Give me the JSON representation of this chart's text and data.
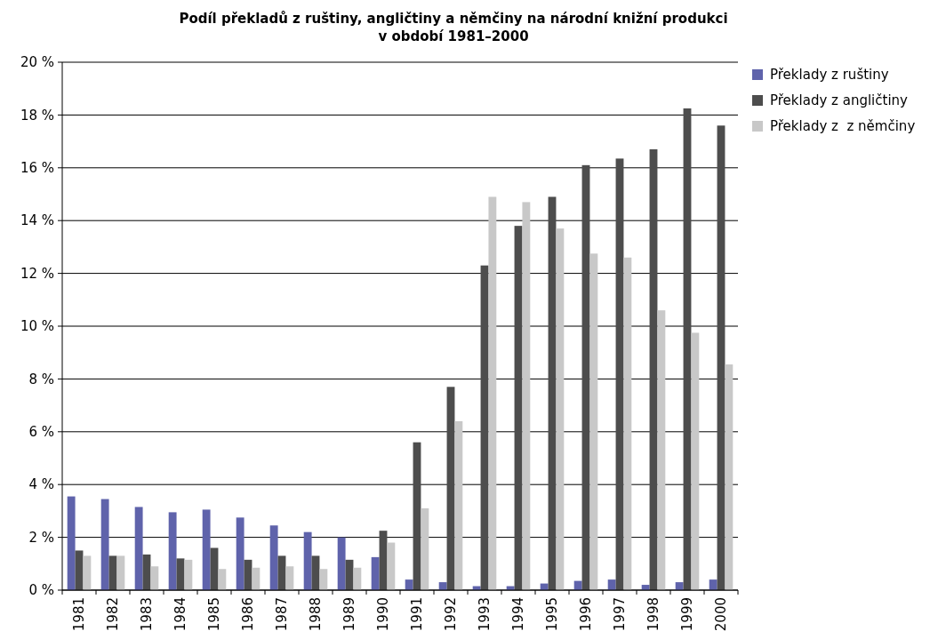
{
  "chart_data": {
    "type": "bar",
    "title": "Podíl překladů z ruštiny, angličtiny a němčiny na národní knižní produkci\nv období 1981–2000",
    "categories": [
      "1981",
      "1982",
      "1983",
      "1984",
      "1985",
      "1986",
      "1987",
      "1988",
      "1989",
      "1990",
      "1991",
      "1992",
      "1993",
      "1994",
      "1995",
      "1996",
      "1997",
      "1998",
      "1999",
      "2000"
    ],
    "series": [
      {
        "name": "Překlady z ruštiny",
        "color": "#5f63ab",
        "values": [
          3.55,
          3.45,
          3.15,
          2.95,
          3.05,
          2.75,
          2.45,
          2.2,
          2.0,
          1.25,
          0.4,
          0.3,
          0.15,
          0.15,
          0.25,
          0.35,
          0.4,
          0.2,
          0.3,
          0.4
        ]
      },
      {
        "name": "Překlady z angličtiny",
        "color": "#4d4d4d",
        "values": [
          1.5,
          1.3,
          1.35,
          1.2,
          1.6,
          1.15,
          1.3,
          1.3,
          1.15,
          2.25,
          5.6,
          7.7,
          12.3,
          13.8,
          14.9,
          16.1,
          16.35,
          16.7,
          18.25,
          17.6
        ]
      },
      {
        "name": "Překlady z  z němčiny",
        "color": "#c8c8c8",
        "values": [
          1.3,
          1.3,
          0.9,
          1.15,
          0.8,
          0.85,
          0.9,
          0.8,
          0.85,
          1.8,
          3.1,
          6.4,
          14.9,
          14.7,
          13.7,
          12.75,
          12.6,
          10.6,
          9.75,
          8.55
        ]
      }
    ],
    "ylim": [
      0,
      20
    ],
    "yticks": [
      {
        "value": 0,
        "label": "0 %"
      },
      {
        "value": 2,
        "label": "2 %"
      },
      {
        "value": 4,
        "label": "4 %"
      },
      {
        "value": 6,
        "label": "6 %"
      },
      {
        "value": 8,
        "label": "8 %"
      },
      {
        "value": 10,
        "label": "10 %"
      },
      {
        "value": 12,
        "label": "12 %"
      },
      {
        "value": 14,
        "label": "14 %"
      },
      {
        "value": 16,
        "label": "16 %"
      },
      {
        "value": 18,
        "label": "18 %"
      },
      {
        "value": 20,
        "label": "20 %"
      }
    ],
    "grid": "y",
    "legend": "right"
  }
}
